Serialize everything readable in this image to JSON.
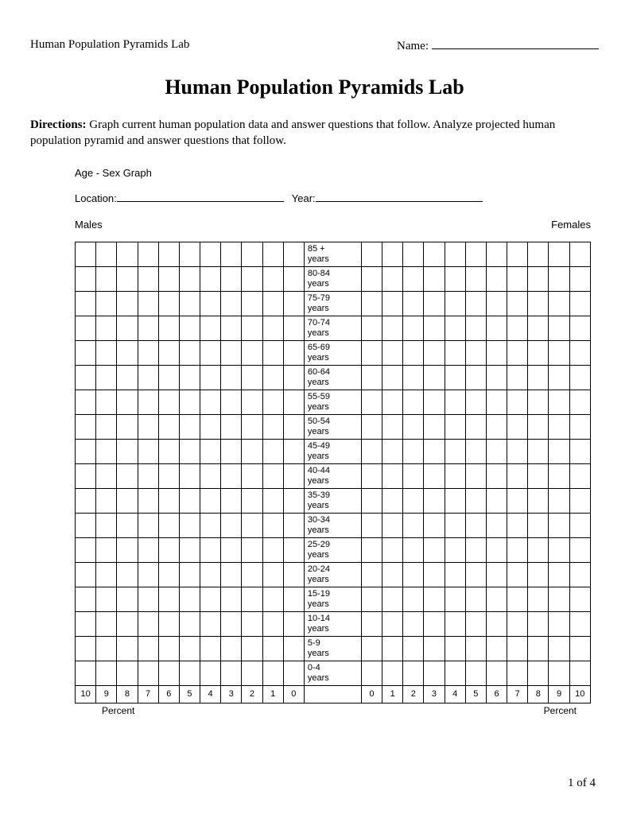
{
  "header": {
    "left": "Human Population Pyramids Lab",
    "name_label": "Name:"
  },
  "title": "Human Population Pyramids Lab",
  "directions": {
    "label": "Directions:",
    "text": " Graph current human population data and answer questions that follow. Analyze projected human population pyramid and answer questions that follow."
  },
  "graph": {
    "title": "Age - Sex Graph",
    "location_label": "Location:",
    "year_label": "Year:",
    "males_label": "Males",
    "females_label": "Females",
    "age_groups": [
      "85 + years",
      "80-84 years",
      "75-79 years",
      "70-74 years",
      "65-69 years",
      "60-64 years",
      "55-59 years",
      "50-54 years",
      "45-49 years",
      "40-44 years",
      "35-39 years",
      "30-34 years",
      "25-29 years",
      "20-24 years",
      "15-19 years",
      "10-14 years",
      "5-9 years",
      "0-4 years"
    ],
    "left_axis": [
      "10",
      "9",
      "8",
      "7",
      "6",
      "5",
      "4",
      "3",
      "2",
      "1",
      "0"
    ],
    "right_axis": [
      "0",
      "1",
      "2",
      "3",
      "4",
      "5",
      "6",
      "7",
      "8",
      "9",
      "10"
    ],
    "percent_label_left": "Percent",
    "percent_label_right": "Percent",
    "side_cols": 11,
    "grid_color": "#000000",
    "background_color": "#ffffff"
  },
  "footer": "1 of 4"
}
